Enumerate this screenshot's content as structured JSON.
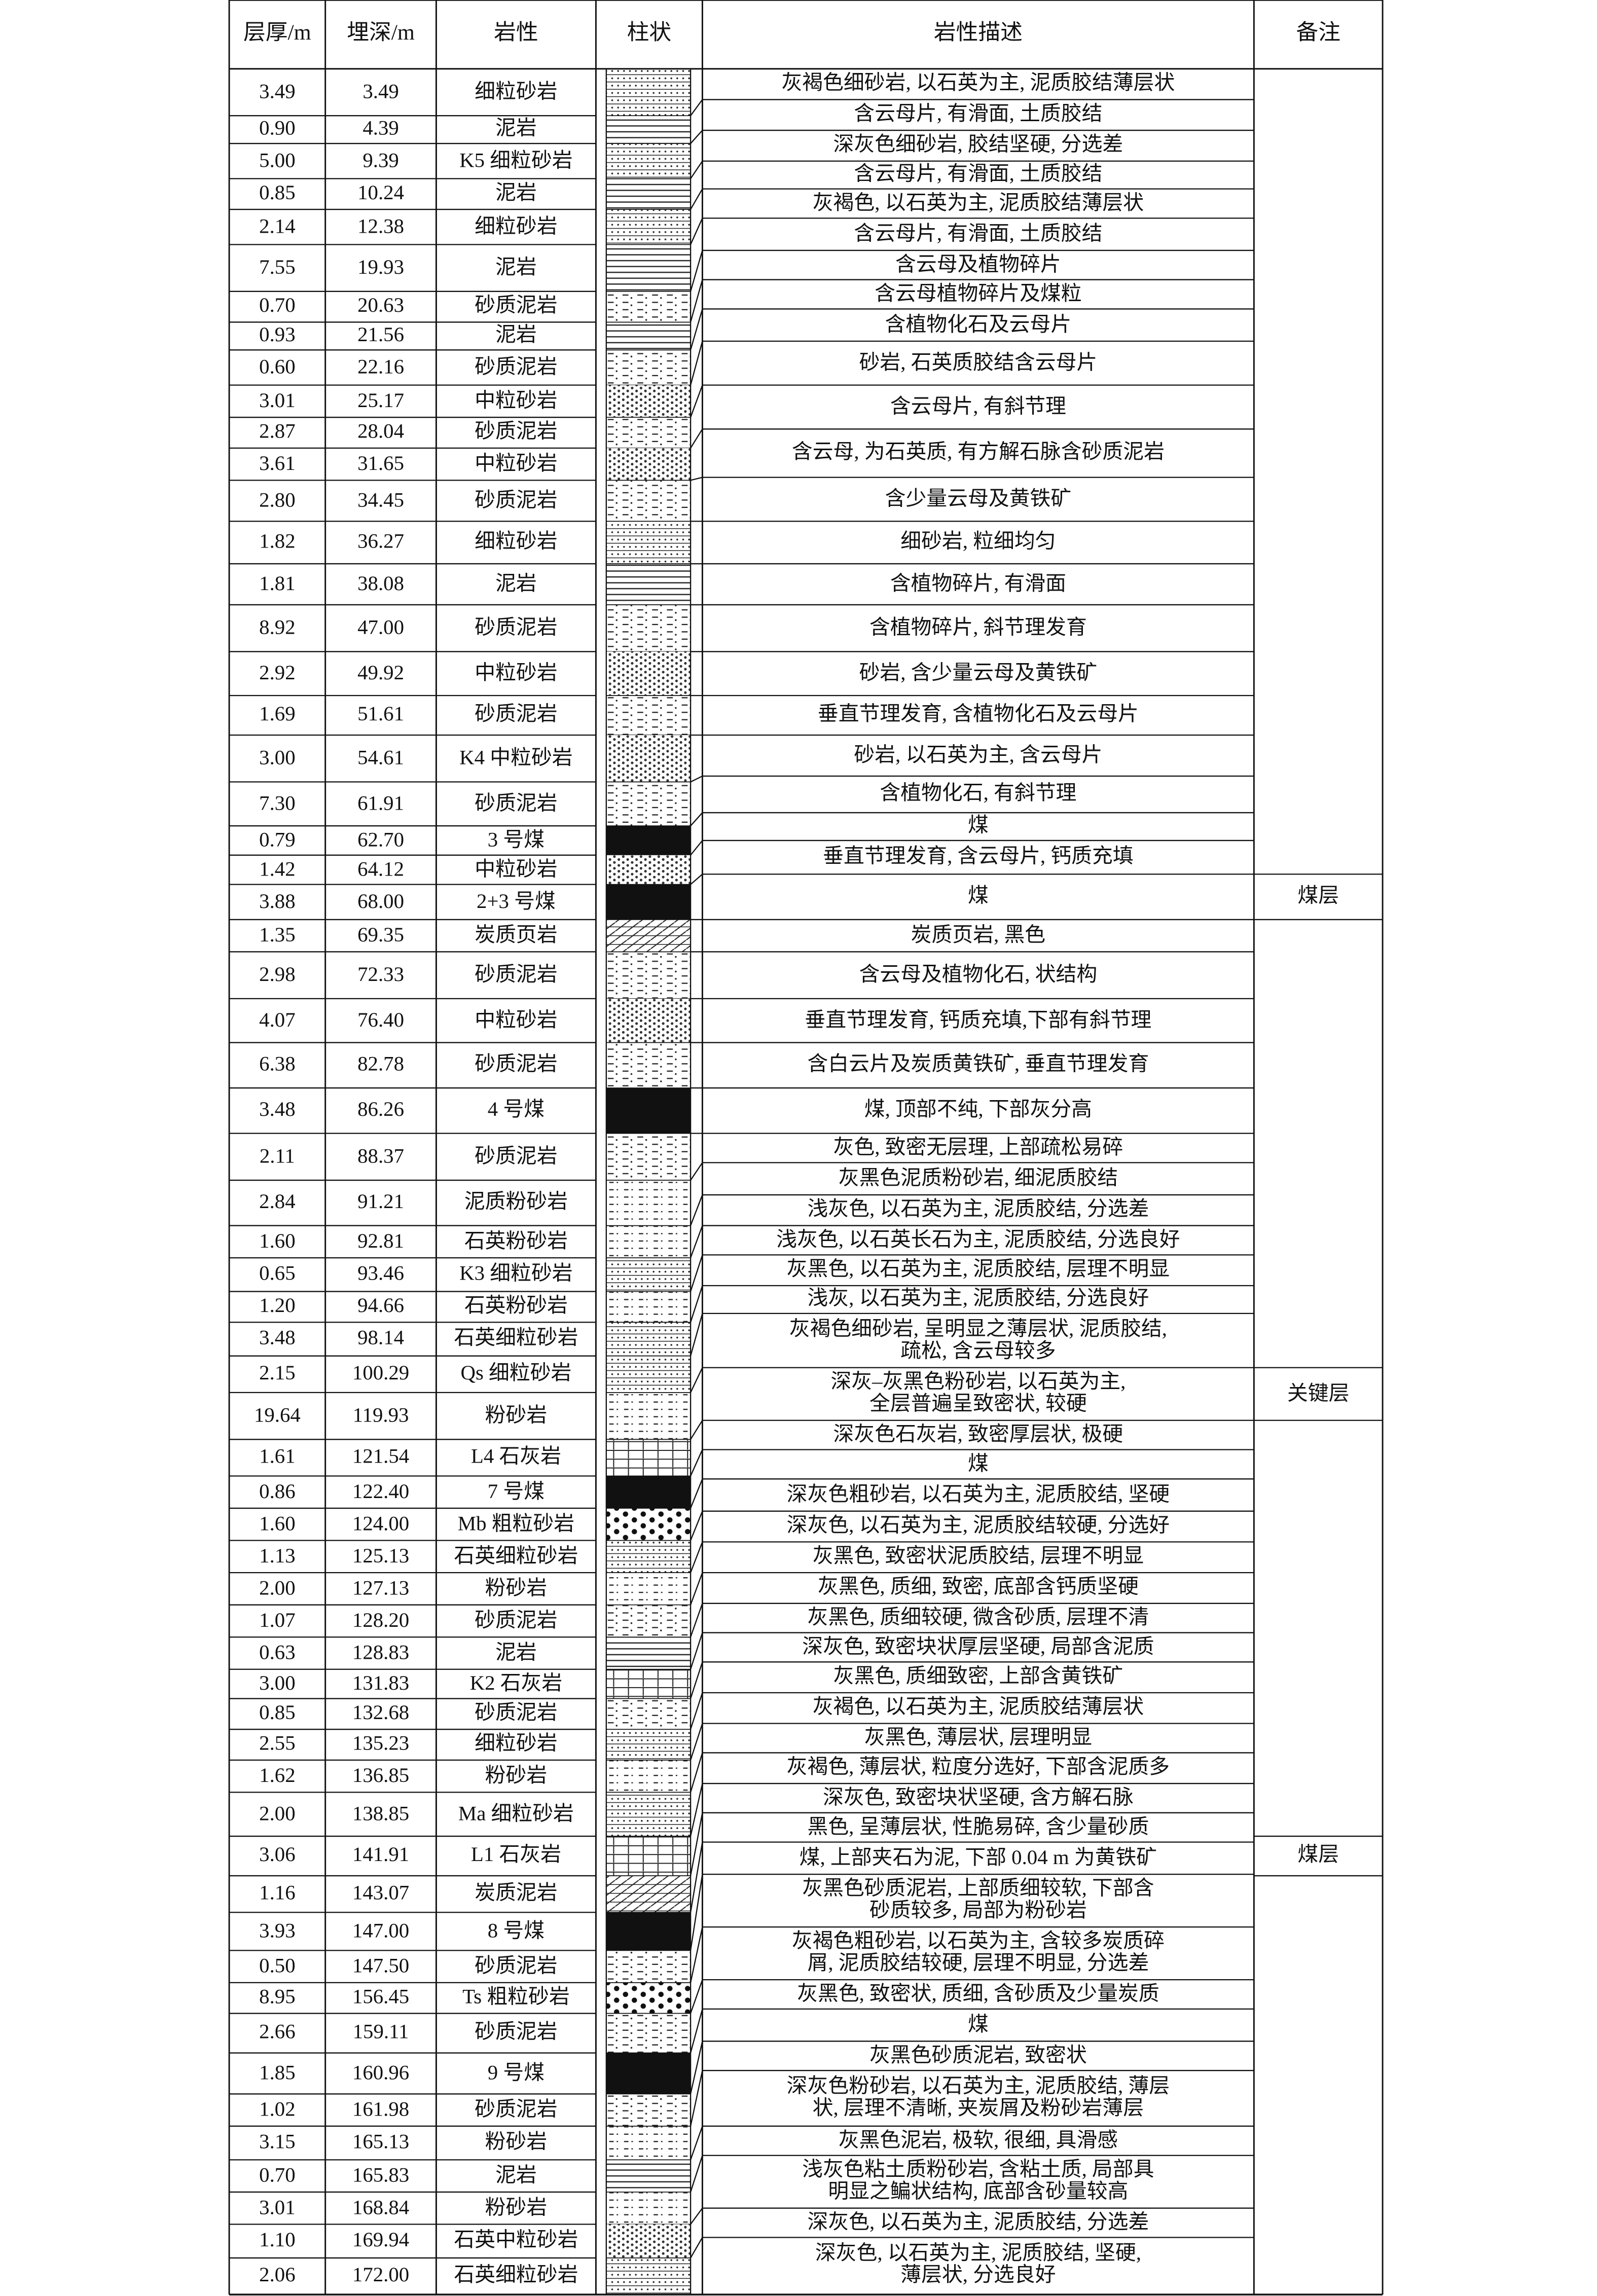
{
  "header": {
    "thickness": "层厚/m",
    "depth": "埋深/m",
    "lithology": "岩性",
    "column": "柱状",
    "description": "岩性描述",
    "remark": "备注"
  },
  "layers": [
    {
      "thickness": "3.49",
      "depth": "3.49",
      "lithology": "细粒砂岩"
    },
    {
      "thickness": "0.90",
      "depth": "4.39",
      "lithology": "泥岩"
    },
    {
      "thickness": "5.00",
      "depth": "9.39",
      "lithology": "K5 细粒砂岩"
    },
    {
      "thickness": "0.85",
      "depth": "10.24",
      "lithology": "泥岩"
    },
    {
      "thickness": "2.14",
      "depth": "12.38",
      "lithology": "细粒砂岩"
    },
    {
      "thickness": "7.55",
      "depth": "19.93",
      "lithology": "泥岩"
    },
    {
      "thickness": "0.70",
      "depth": "20.63",
      "lithology": "砂质泥岩"
    },
    {
      "thickness": "0.93",
      "depth": "21.56",
      "lithology": "泥岩"
    },
    {
      "thickness": "0.60",
      "depth": "22.16",
      "lithology": "砂质泥岩"
    },
    {
      "thickness": "3.01",
      "depth": "25.17",
      "lithology": "中粒砂岩"
    },
    {
      "thickness": "2.87",
      "depth": "28.04",
      "lithology": "砂质泥岩"
    },
    {
      "thickness": "3.61",
      "depth": "31.65",
      "lithology": "中粒砂岩"
    },
    {
      "thickness": "2.80",
      "depth": "34.45",
      "lithology": "砂质泥岩"
    },
    {
      "thickness": "1.82",
      "depth": "36.27",
      "lithology": "细粒砂岩"
    },
    {
      "thickness": "1.81",
      "depth": "38.08",
      "lithology": "泥岩"
    },
    {
      "thickness": "8.92",
      "depth": "47.00",
      "lithology": "砂质泥岩"
    },
    {
      "thickness": "2.92",
      "depth": "49.92",
      "lithology": "中粒砂岩"
    },
    {
      "thickness": "1.69",
      "depth": "51.61",
      "lithology": "砂质泥岩"
    },
    {
      "thickness": "3.00",
      "depth": "54.61",
      "lithology": "K4 中粒砂岩"
    },
    {
      "thickness": "7.30",
      "depth": "61.91",
      "lithology": "砂质泥岩"
    },
    {
      "thickness": "0.79",
      "depth": "62.70",
      "lithology": "3 号煤"
    },
    {
      "thickness": "1.42",
      "depth": "64.12",
      "lithology": "中粒砂岩"
    },
    {
      "thickness": "3.88",
      "depth": "68.00",
      "lithology": "2+3 号煤"
    },
    {
      "thickness": "1.35",
      "depth": "69.35",
      "lithology": "炭质页岩"
    },
    {
      "thickness": "2.98",
      "depth": "72.33",
      "lithology": "砂质泥岩"
    },
    {
      "thickness": "4.07",
      "depth": "76.40",
      "lithology": "中粒砂岩"
    },
    {
      "thickness": "6.38",
      "depth": "82.78",
      "lithology": "砂质泥岩"
    },
    {
      "thickness": "3.48",
      "depth": "86.26",
      "lithology": "4 号煤"
    },
    {
      "thickness": "2.11",
      "depth": "88.37",
      "lithology": "砂质泥岩"
    },
    {
      "thickness": "2.84",
      "depth": "91.21",
      "lithology": "泥质粉砂岩"
    },
    {
      "thickness": "1.60",
      "depth": "92.81",
      "lithology": "石英粉砂岩"
    },
    {
      "thickness": "0.65",
      "depth": "93.46",
      "lithology": "K3 细粒砂岩"
    },
    {
      "thickness": "1.20",
      "depth": "94.66",
      "lithology": "石英粉砂岩"
    },
    {
      "thickness": "3.48",
      "depth": "98.14",
      "lithology": "石英细粒砂岩"
    },
    {
      "thickness": "2.15",
      "depth": "100.29",
      "lithology": "Qs 细粒砂岩"
    },
    {
      "thickness": "19.64",
      "depth": "119.93",
      "lithology": "粉砂岩"
    },
    {
      "thickness": "1.61",
      "depth": "121.54",
      "lithology": "L4 石灰岩"
    },
    {
      "thickness": "0.86",
      "depth": "122.40",
      "lithology": "7 号煤"
    },
    {
      "thickness": "1.60",
      "depth": "124.00",
      "lithology": "Mb 粗粒砂岩"
    },
    {
      "thickness": "1.13",
      "depth": "125.13",
      "lithology": "石英细粒砂岩"
    },
    {
      "thickness": "2.00",
      "depth": "127.13",
      "lithology": "粉砂岩"
    },
    {
      "thickness": "1.07",
      "depth": "128.20",
      "lithology": "砂质泥岩"
    },
    {
      "thickness": "0.63",
      "depth": "128.83",
      "lithology": "泥岩"
    },
    {
      "thickness": "3.00",
      "depth": "131.83",
      "lithology": "K2 石灰岩"
    },
    {
      "thickness": "0.85",
      "depth": "132.68",
      "lithology": "砂质泥岩"
    },
    {
      "thickness": "2.55",
      "depth": "135.23",
      "lithology": "细粒砂岩"
    },
    {
      "thickness": "1.62",
      "depth": "136.85",
      "lithology": "粉砂岩"
    },
    {
      "thickness": "2.00",
      "depth": "138.85",
      "lithology": "Ma 细粒砂岩"
    },
    {
      "thickness": "3.06",
      "depth": "141.91",
      "lithology": "L1 石灰岩"
    },
    {
      "thickness": "1.16",
      "depth": "143.07",
      "lithology": "炭质泥岩"
    },
    {
      "thickness": "3.93",
      "depth": "147.00",
      "lithology": "8 号煤"
    },
    {
      "thickness": "0.50",
      "depth": "147.50",
      "lithology": "砂质泥岩"
    },
    {
      "thickness": "8.95",
      "depth": "156.45",
      "lithology": "Ts 粗粒砂岩"
    },
    {
      "thickness": "2.66",
      "depth": "159.11",
      "lithology": "砂质泥岩"
    },
    {
      "thickness": "1.85",
      "depth": "160.96",
      "lithology": "9 号煤"
    },
    {
      "thickness": "1.02",
      "depth": "161.98",
      "lithology": "砂质泥岩"
    },
    {
      "thickness": "3.15",
      "depth": "165.13",
      "lithology": "粉砂岩"
    },
    {
      "thickness": "0.70",
      "depth": "165.83",
      "lithology": "泥岩"
    },
    {
      "thickness": "3.01",
      "depth": "168.84",
      "lithology": "粉砂岩"
    },
    {
      "thickness": "1.10",
      "depth": "169.94",
      "lithology": "石英中粒砂岩"
    },
    {
      "thickness": "2.06",
      "depth": "172.00",
      "lithology": "石英细粒砂岩"
    }
  ],
  "descriptions": [
    [
      "灰褐色细砂岩, 以石英为主, 泥质胶结薄层状"
    ],
    [
      "含云母片, 有滑面, 土质胶结"
    ],
    [
      "深灰色细砂岩, 胶结坚硬, 分选差"
    ],
    [
      "含云母片, 有滑面, 土质胶结"
    ],
    [
      "灰褐色, 以石英为主, 泥质胶结薄层状"
    ],
    [
      "含云母片, 有滑面, 土质胶结"
    ],
    [
      "含云母及植物碎片"
    ],
    [
      "含云母植物碎片及煤粒"
    ],
    [
      "含植物化石及云母片"
    ],
    [
      "砂岩, 石英质胶结含云母片"
    ],
    [
      "含云母片, 有斜节理"
    ],
    [
      "含云母, 为石英质, 有方解石脉含砂质泥岩"
    ],
    [
      "含少量云母及黄铁矿"
    ],
    [
      "细砂岩, 粒细均匀"
    ],
    [
      "含植物碎片, 有滑面"
    ],
    [
      "含植物碎片, 斜节理发育"
    ],
    [
      "砂岩, 含少量云母及黄铁矿"
    ],
    [
      "垂直节理发育, 含植物化石及云母片"
    ],
    [
      "砂岩, 以石英为主, 含云母片"
    ],
    [
      "含植物化石, 有斜节理"
    ],
    [
      "煤"
    ],
    [
      "垂直节理发育, 含云母片, 钙质充填"
    ],
    [
      "煤"
    ],
    [
      "炭质页岩, 黑色"
    ],
    [
      "含云母及植物化石, 状结构"
    ],
    [
      "垂直节理发育, 钙质充填,下部有斜节理"
    ],
    [
      "含白云片及炭质黄铁矿, 垂直节理发育"
    ],
    [
      "煤, 顶部不纯, 下部灰分高"
    ],
    [
      "灰色, 致密无层理, 上部疏松易碎"
    ],
    [
      "灰黑色泥质粉砂岩, 细泥质胶结"
    ],
    [
      "浅灰色, 以石英为主, 泥质胶结, 分选差"
    ],
    [
      "浅灰色, 以石英长石为主, 泥质胶结, 分选良好"
    ],
    [
      "灰黑色, 以石英为主, 泥质胶结, 层理不明显"
    ],
    [
      "浅灰, 以石英为主, 泥质胶结, 分选良好"
    ],
    [
      "灰褐色细砂岩, 呈明显之薄层状, 泥质胶结,",
      "疏松, 含云母较多"
    ],
    [
      "深灰–灰黑色粉砂岩, 以石英为主,",
      "全层普遍呈致密状, 较硬"
    ],
    [
      "深灰色石灰岩, 致密厚层状, 极硬"
    ],
    [
      "煤"
    ],
    [
      "深灰色粗砂岩, 以石英为主, 泥质胶结, 坚硬"
    ],
    [
      "深灰色, 以石英为主, 泥质胶结较硬, 分选好"
    ],
    [
      "灰黑色, 致密状泥质胶结, 层理不明显"
    ],
    [
      "灰黑色, 质细, 致密, 底部含钙质坚硬"
    ],
    [
      "灰黑色, 质细较硬, 微含砂质, 层理不清"
    ],
    [
      "深灰色, 致密块状厚层坚硬, 局部含泥质"
    ],
    [
      "灰黑色, 质细致密, 上部含黄铁矿"
    ],
    [
      "灰褐色, 以石英为主, 泥质胶结薄层状"
    ],
    [
      "灰黑色, 薄层状, 层理明显"
    ],
    [
      "灰褐色, 薄层状, 粒度分选好, 下部含泥质多"
    ],
    [
      "深灰色, 致密块状坚硬, 含方解石脉"
    ],
    [
      "黑色, 呈薄层状, 性脆易碎, 含少量砂质"
    ],
    [
      "煤, 上部夹石为泥, 下部 0.04 m 为黄铁矿"
    ],
    [
      "灰黑色砂质泥岩, 上部质细较软, 下部含",
      "砂质较多, 局部为粉砂岩"
    ],
    [
      "灰褐色粗砂岩, 以石英为主, 含较多炭质碎",
      "屑, 泥质胶结较硬, 层理不明显, 分选差"
    ],
    [
      "灰黑色, 致密状, 质细, 含砂质及少量炭质"
    ],
    [
      "煤"
    ],
    [
      "灰黑色砂质泥岩, 致密状"
    ],
    [
      "深灰色粉砂岩, 以石英为主, 泥质胶结, 薄层",
      "状, 层理不清晰, 夹炭屑及粉砂岩薄层"
    ],
    [
      "灰黑色泥岩, 极软, 很细, 具滑感"
    ],
    [
      "浅灰色粘土质粉砂岩, 含粘土质, 局部具",
      "明显之鳊状结构, 底部含砂量较高"
    ],
    [
      "深灰色, 以石英为主, 泥质胶结, 分选差"
    ],
    [
      "深灰色, 以石英为主, 泥质胶结, 坚硬,",
      "薄层状, 分选良好"
    ]
  ],
  "remarks": [
    "煤层",
    "关键层",
    "煤层"
  ]
}
